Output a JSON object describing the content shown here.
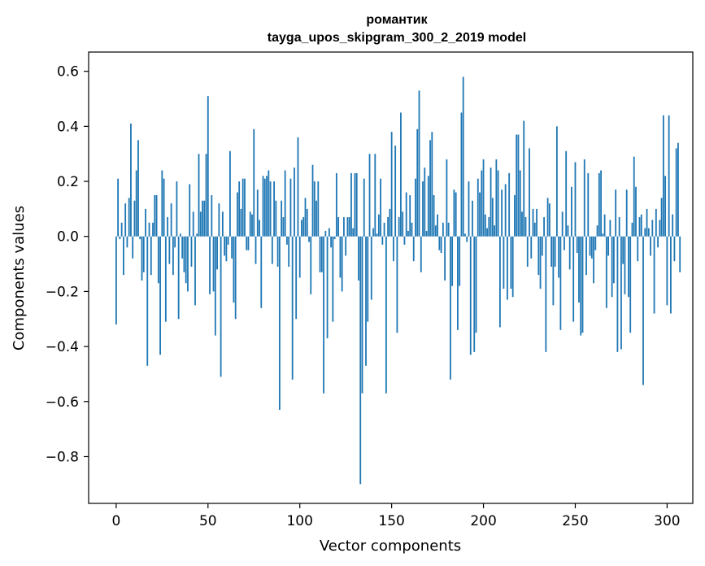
{
  "chart_data": {
    "type": "bar",
    "title_line1": "романтик",
    "title_line2": "tayga_upos_skipgram_300_2_2019 model",
    "xlabel": "Vector components",
    "ylabel": "Components values",
    "xlim": [
      -15,
      314
    ],
    "ylim": [
      -0.97,
      0.67
    ],
    "xticks": [
      0,
      50,
      100,
      150,
      200,
      250,
      300
    ],
    "yticks": [
      -0.8,
      -0.6,
      -0.4,
      -0.2,
      0.0,
      0.2,
      0.4,
      0.6
    ],
    "ytick_labels": [
      "−0.8",
      "−0.6",
      "−0.4",
      "−0.2",
      "0.0",
      "0.2",
      "0.4",
      "0.6"
    ],
    "grid": false,
    "bar_color": "#1f77b4",
    "values": [
      -0.32,
      0.21,
      -0.01,
      0.05,
      -0.14,
      0.12,
      -0.04,
      0.14,
      0.41,
      -0.08,
      0.13,
      0.24,
      0.35,
      -0.01,
      -0.16,
      -0.13,
      0.1,
      -0.47,
      0.05,
      -0.14,
      0.05,
      0.15,
      0.15,
      -0.17,
      -0.43,
      0.24,
      0.21,
      -0.31,
      0.07,
      -0.1,
      0.12,
      -0.14,
      -0.04,
      0.2,
      -0.3,
      0.01,
      -0.08,
      -0.13,
      -0.17,
      -0.2,
      0.19,
      -0.11,
      0.09,
      -0.25,
      0.01,
      0.3,
      0.09,
      0.13,
      0.13,
      0.3,
      0.51,
      -0.21,
      0.15,
      -0.2,
      -0.36,
      -0.12,
      0.12,
      -0.51,
      0.09,
      -0.07,
      -0.09,
      -0.03,
      0.31,
      -0.08,
      -0.24,
      -0.3,
      0.16,
      0.2,
      0.1,
      0.21,
      0.21,
      -0.05,
      -0.05,
      0.09,
      0.08,
      0.39,
      -0.1,
      0.17,
      0.06,
      -0.26,
      0.22,
      0.21,
      0.22,
      0.24,
      0.2,
      -0.1,
      0.2,
      0.13,
      -0.11,
      -0.63,
      0.13,
      0.07,
      0.24,
      -0.03,
      -0.11,
      0.21,
      -0.52,
      0.25,
      -0.3,
      0.36,
      -0.15,
      0.06,
      0.07,
      0.14,
      0.1,
      -0.02,
      -0.21,
      0.26,
      0.2,
      0.13,
      0.2,
      -0.13,
      -0.13,
      -0.57,
      0.02,
      -0.37,
      0.03,
      -0.04,
      -0.31,
      -0.01,
      0.23,
      0.07,
      -0.15,
      -0.2,
      0.07,
      -0.07,
      0.07,
      0.07,
      0.23,
      0.03,
      0.23,
      0.23,
      -0.16,
      -0.9,
      -0.57,
      0.21,
      -0.47,
      -0.31,
      0.3,
      -0.23,
      0.03,
      0.3,
      0.01,
      0.08,
      0.21,
      -0.03,
      0.05,
      -0.57,
      0.07,
      0.1,
      0.38,
      -0.09,
      0.33,
      -0.35,
      0.07,
      0.45,
      0.09,
      -0.03,
      0.16,
      0.02,
      0.15,
      0.05,
      -0.09,
      0.21,
      0.39,
      0.53,
      -0.13,
      0.2,
      0.25,
      0.02,
      0.22,
      0.35,
      0.38,
      0.15,
      0.04,
      0.08,
      -0.05,
      -0.06,
      0.05,
      -0.16,
      0.28,
      0.05,
      -0.52,
      -0.18,
      0.17,
      0.16,
      -0.34,
      -0.18,
      0.45,
      0.58,
      0.01,
      -0.02,
      0.2,
      -0.43,
      0.13,
      -0.42,
      -0.35,
      0.21,
      0.16,
      0.24,
      0.28,
      0.08,
      0.03,
      0.07,
      0.25,
      0.14,
      0.04,
      0.28,
      0.24,
      -0.33,
      0.17,
      -0.19,
      0.19,
      -0.23,
      0.23,
      -0.19,
      -0.22,
      0.15,
      0.37,
      0.37,
      0.24,
      0.09,
      0.42,
      0.07,
      -0.11,
      0.32,
      -0.08,
      0.1,
      0.05,
      0.1,
      -0.14,
      -0.19,
      -0.07,
      0.07,
      -0.42,
      0.14,
      0.12,
      -0.11,
      -0.25,
      -0.11,
      0.4,
      -0.15,
      -0.34,
      0.09,
      -0.05,
      0.31,
      0.04,
      -0.12,
      0.18,
      -0.31,
      0.27,
      -0.06,
      -0.24,
      -0.36,
      -0.35,
      0.28,
      -0.14,
      0.23,
      -0.07,
      -0.08,
      -0.17,
      -0.05,
      0.04,
      0.23,
      0.24,
      0.01,
      0.08,
      -0.26,
      -0.07,
      0.06,
      -0.22,
      -0.17,
      0.17,
      -0.42,
      0.07,
      -0.41,
      -0.1,
      -0.21,
      0.17,
      -0.22,
      -0.35,
      0.05,
      0.29,
      0.18,
      -0.09,
      0.07,
      0.08,
      -0.54,
      0.03,
      0.1,
      0.03,
      -0.07,
      0.06,
      -0.28,
      0.1,
      -0.04,
      0.06,
      0.14,
      0.44,
      0.22,
      -0.25,
      0.44,
      -0.28,
      0.08,
      -0.09,
      0.32,
      0.34,
      -0.13
    ]
  }
}
